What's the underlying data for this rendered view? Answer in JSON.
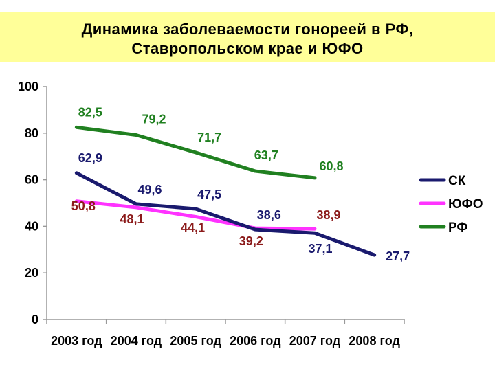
{
  "title": {
    "line1": "Динамика заболеваемости гонореей в РФ,",
    "line2": "Ставропольском крае и ЮФО"
  },
  "colors": {
    "title_background": "#ffff99",
    "sk": "#1a1a6e",
    "yufo": "#ff33ff",
    "rf": "#208020",
    "label_dark_red": "#8b1a1a"
  },
  "chart_data": {
    "type": "line",
    "categories": [
      "2003 год",
      "2004 год",
      "2005 год",
      "2006 год",
      "2007 год",
      "2008 год"
    ],
    "ylim": [
      0,
      100
    ],
    "yticks": [
      0,
      20,
      40,
      60,
      80,
      100
    ],
    "grid": false,
    "legend_position": "right",
    "series": [
      {
        "name": "СК",
        "key": "sk",
        "values": [
          62.9,
          49.6,
          47.5,
          38.6,
          37.1,
          27.7
        ],
        "labels": [
          "62,9",
          "49,6",
          "47,5",
          "38,6",
          "37,1",
          "27,7"
        ]
      },
      {
        "name": "ЮФО",
        "key": "yufo",
        "values": [
          50.8,
          48.1,
          44.1,
          39.2,
          38.9,
          null
        ],
        "labels": [
          "50,8",
          "48,1",
          "44,1",
          "39,2",
          "38,9",
          null
        ]
      },
      {
        "name": "РФ",
        "key": "rf",
        "values": [
          82.5,
          79.2,
          71.7,
          63.7,
          60.8,
          null
        ],
        "labels": [
          "82,5",
          "79,2",
          "71,7",
          "63,7",
          "60,8",
          null
        ]
      }
    ]
  }
}
